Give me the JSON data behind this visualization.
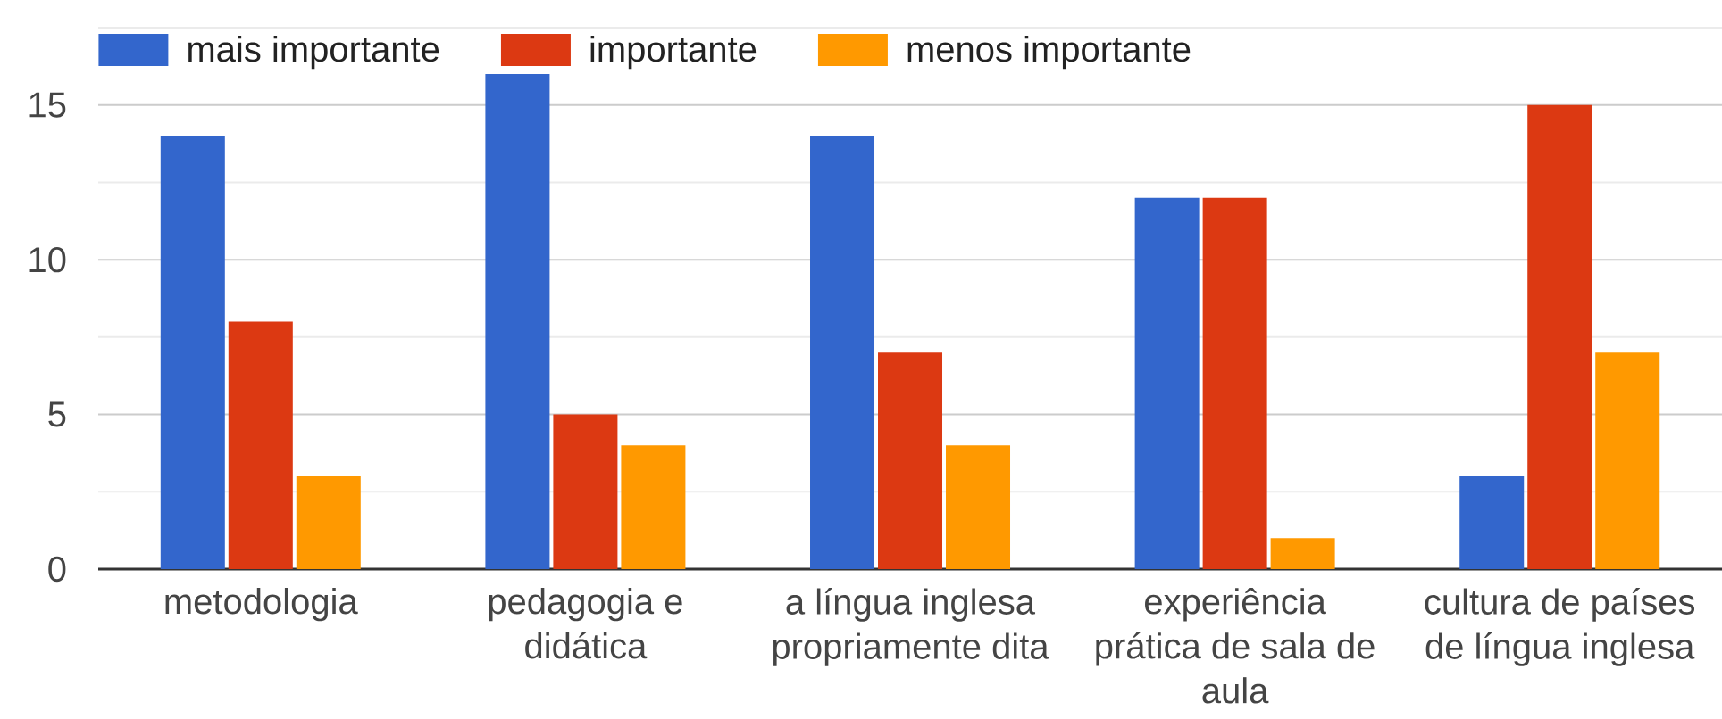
{
  "chart_data": {
    "type": "bar",
    "categories": [
      "metodologia",
      "pedagogia e didática",
      "a língua inglesa propriamente dita",
      "experiência prática de sala de aula",
      "cultura de países de língua inglesa"
    ],
    "series": [
      {
        "name": "mais importante",
        "color": "#3366cc",
        "values": [
          14,
          16,
          14,
          12,
          3
        ]
      },
      {
        "name": "importante",
        "color": "#dc3912",
        "values": [
          8,
          5,
          7,
          12,
          15
        ]
      },
      {
        "name": "menos importante",
        "color": "#ff9900",
        "values": [
          3,
          4,
          4,
          1,
          7
        ]
      }
    ],
    "ylim": [
      0,
      17.5
    ],
    "yticks": [
      0,
      {
        "value": 2.5,
        "label": null
      },
      5,
      {
        "value": 7.5,
        "label": null
      },
      10,
      {
        "value": 12.5,
        "label": null
      },
      15,
      {
        "value": 17.5,
        "label": null
      }
    ],
    "grid": "y",
    "legend": "top left"
  }
}
